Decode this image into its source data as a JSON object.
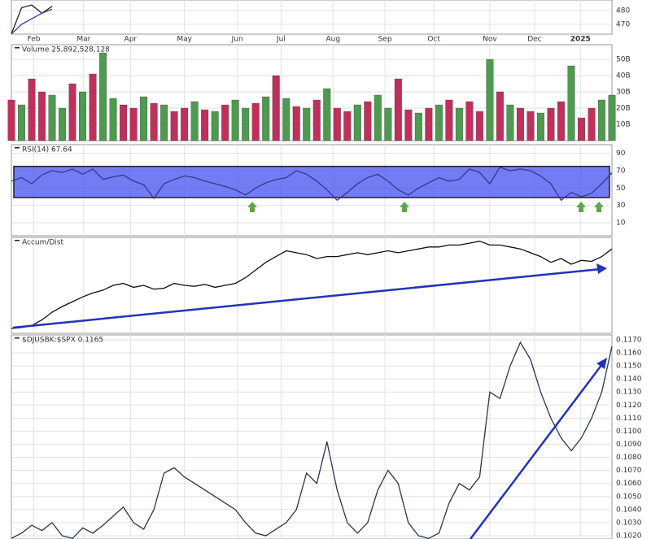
{
  "chart_data": [
    {
      "type": "line",
      "ylim": [
        462.9,
        487.6
      ],
      "yticks": [
        470,
        480
      ],
      "xlim": [
        0,
        59
      ],
      "xticks": [
        {
          "value": 2.2,
          "label": "Feb"
        },
        {
          "value": 7.1,
          "label": "Mar"
        },
        {
          "value": 11.7,
          "label": "Apr"
        },
        {
          "value": 17.0,
          "label": "May"
        },
        {
          "value": 22.2,
          "label": "Jun"
        },
        {
          "value": 26.5,
          "label": "Jul"
        },
        {
          "value": 31.6,
          "label": "Aug"
        },
        {
          "value": 36.7,
          "label": "Sep"
        },
        {
          "value": 41.5,
          "label": "Oct"
        },
        {
          "value": 47.0,
          "label": "Nov"
        },
        {
          "value": 51.4,
          "label": "Dec"
        },
        {
          "value": 55.9,
          "label": "2025"
        }
      ],
      "series": [
        {
          "color": "#222222",
          "values": [
            463,
            482,
            484,
            478,
            483
          ]
        },
        {
          "color": "#2a3fb0",
          "values": [
            463,
            470,
            474,
            478,
            481
          ]
        }
      ]
    },
    {
      "type": "bar",
      "title": "Volume 25,892,528,128",
      "ylim": [
        0,
        59000000000
      ],
      "xlim": [
        0,
        59
      ],
      "yticks": [
        {
          "value": 10000000000,
          "label": "10B"
        },
        {
          "value": 20000000000,
          "label": "20B"
        },
        {
          "value": 30000000000,
          "label": "30B"
        },
        {
          "value": 40000000000,
          "label": "40B"
        },
        {
          "value": 50000000000,
          "label": "50B"
        }
      ],
      "values": [
        25000000000,
        22000000000,
        38000000000,
        30000000000,
        28000000000,
        20000000000,
        35000000000,
        30000000000,
        41000000000,
        54000000000,
        26000000000,
        22000000000,
        20000000000,
        27000000000,
        23000000000,
        22000000000,
        18000000000,
        20000000000,
        24000000000,
        19000000000,
        18000000000,
        22000000000,
        25000000000,
        20000000000,
        23000000000,
        27000000000,
        40000000000,
        26000000000,
        21000000000,
        20000000000,
        25000000000,
        32000000000,
        20000000000,
        18000000000,
        22000000000,
        24000000000,
        28000000000,
        20000000000,
        38000000000,
        19000000000,
        17000000000,
        20000000000,
        22000000000,
        25000000000,
        20000000000,
        24000000000,
        18000000000,
        50000000000,
        30000000000,
        22000000000,
        20000000000,
        18000000000,
        17000000000,
        20000000000,
        24000000000,
        46000000000,
        14000000000,
        20000000000,
        25000000000,
        28000000000
      ],
      "colors": [
        "#c0305a",
        "#4e9a4e",
        "#c0305a",
        "#c0305a",
        "#4e9a4e",
        "#4e9a4e",
        "#c0305a",
        "#4e9a4e",
        "#c0305a",
        "#4e9a4e",
        "#4e9a4e",
        "#c0305a",
        "#c0305a",
        "#4e9a4e",
        "#c0305a",
        "#4e9a4e",
        "#c0305a",
        "#c0305a",
        "#4e9a4e",
        "#c0305a",
        "#4e9a4e",
        "#c0305a",
        "#4e9a4e",
        "#4e9a4e",
        "#c0305a",
        "#4e9a4e",
        "#c0305a",
        "#4e9a4e",
        "#c0305a",
        "#4e9a4e",
        "#c0305a",
        "#4e9a4e",
        "#c0305a",
        "#c0305a",
        "#4e9a4e",
        "#c0305a",
        "#4e9a4e",
        "#4e9a4e",
        "#c0305a",
        "#c0305a",
        "#4e9a4e",
        "#c0305a",
        "#4e9a4e",
        "#c0305a",
        "#4e9a4e",
        "#c0305a",
        "#c0305a",
        "#4e9a4e",
        "#c0305a",
        "#4e9a4e",
        "#c0305a",
        "#c0305a",
        "#4e9a4e",
        "#c0305a",
        "#c0305a",
        "#4e9a4e",
        "#c0305a",
        "#c0305a",
        "#4e9a4e",
        "#4e9a4e"
      ]
    },
    {
      "type": "line",
      "title": "RSI(14) 67.64",
      "ylim": [
        -5,
        100
      ],
      "yticks": [
        10,
        30,
        50,
        70,
        90
      ],
      "xlim": [
        0,
        59
      ],
      "band": [
        39,
        75
      ],
      "series": [
        {
          "color": "#2f3a8a",
          "values": [
            58,
            62,
            55,
            65,
            70,
            68,
            72,
            66,
            72,
            60,
            63,
            65,
            58,
            54,
            38,
            55,
            60,
            64,
            62,
            58,
            55,
            52,
            48,
            42,
            50,
            56,
            60,
            62,
            70,
            66,
            58,
            48,
            36,
            45,
            55,
            62,
            66,
            58,
            48,
            42,
            50,
            56,
            62,
            58,
            60,
            72,
            68,
            55,
            74,
            70,
            72,
            70,
            64,
            55,
            36,
            45,
            40,
            44,
            55,
            67.64
          ]
        }
      ]
    },
    {
      "type": "line",
      "title": "Accum/Dist",
      "ylim": [
        0,
        100
      ],
      "xlim": [
        0,
        59
      ],
      "series": [
        {
          "color": "#111111",
          "values": [
            5,
            6,
            8,
            14,
            22,
            28,
            33,
            38,
            42,
            45,
            50,
            52,
            48,
            50,
            46,
            47,
            52,
            50,
            49,
            51,
            48,
            50,
            52,
            58,
            66,
            74,
            80,
            86,
            84,
            82,
            78,
            80,
            80,
            82,
            84,
            82,
            84,
            86,
            84,
            86,
            88,
            90,
            90,
            92,
            92,
            94,
            96,
            92,
            92,
            90,
            88,
            84,
            80,
            74,
            78,
            72,
            76,
            75,
            80,
            88
          ]
        }
      ]
    },
    {
      "type": "line",
      "title": "$DJUSBK:$SPX 0.1165",
      "ylim": [
        0.10175,
        0.11737
      ],
      "xlim": [
        0,
        59
      ],
      "yticks": [
        {
          "value": 0.102,
          "label": "0.1020"
        },
        {
          "value": 0.103,
          "label": "0.1030"
        },
        {
          "value": 0.104,
          "label": "0.1040"
        },
        {
          "value": 0.105,
          "label": "0.1050"
        },
        {
          "value": 0.106,
          "label": "0.1060"
        },
        {
          "value": 0.107,
          "label": "0.1070"
        },
        {
          "value": 0.108,
          "label": "0.1080"
        },
        {
          "value": 0.109,
          "label": "0.1090"
        },
        {
          "value": 0.11,
          "label": "0.1100"
        },
        {
          "value": 0.111,
          "label": "0.1110"
        },
        {
          "value": 0.112,
          "label": "0.1120"
        },
        {
          "value": 0.113,
          "label": "0.1130"
        },
        {
          "value": 0.114,
          "label": "0.1140"
        },
        {
          "value": 0.115,
          "label": "0.1150"
        },
        {
          "value": 0.116,
          "label": "0.1160"
        },
        {
          "value": 0.117,
          "label": "0.1170"
        }
      ],
      "series": [
        {
          "color": "#2b3550",
          "values": [
            0.1018,
            0.1022,
            0.1028,
            0.1024,
            0.103,
            0.102,
            0.1018,
            0.1026,
            0.1022,
            0.1028,
            0.1035,
            0.1042,
            0.103,
            0.1025,
            0.104,
            0.1068,
            0.1072,
            0.1065,
            0.106,
            0.1055,
            0.105,
            0.1045,
            0.104,
            0.103,
            0.1022,
            0.102,
            0.1025,
            0.103,
            0.104,
            0.1068,
            0.106,
            0.1092,
            0.1055,
            0.103,
            0.1022,
            0.103,
            0.1055,
            0.107,
            0.106,
            0.103,
            0.102,
            0.1018,
            0.1022,
            0.1045,
            0.106,
            0.1055,
            0.1065,
            0.113,
            0.1125,
            0.115,
            0.1168,
            0.1155,
            0.113,
            0.111,
            0.1095,
            0.1085,
            0.1095,
            0.111,
            0.113,
            0.1165
          ]
        }
      ]
    }
  ]
}
